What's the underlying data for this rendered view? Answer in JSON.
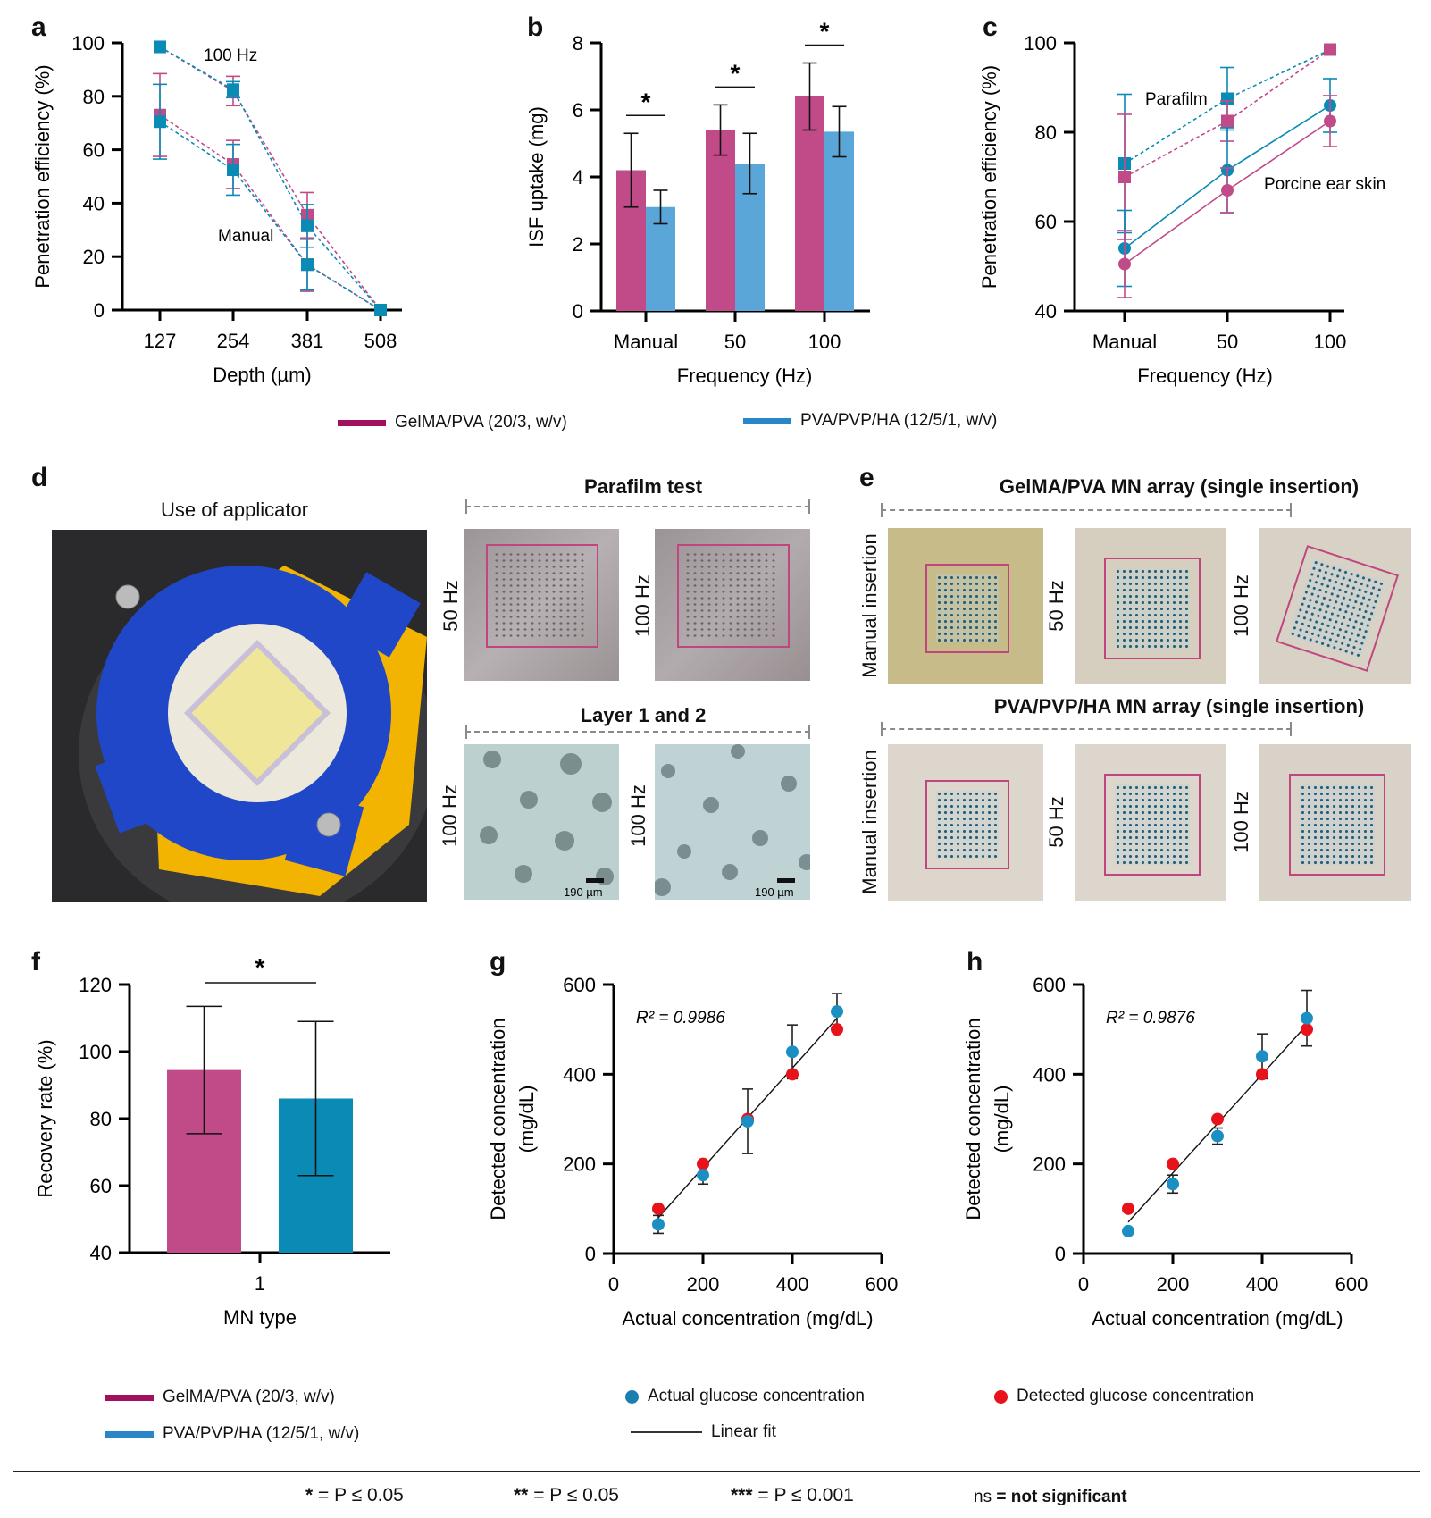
{
  "colors": {
    "gelma": "#c14b89",
    "pva": "#0a8bb5",
    "pva_light": "#5aa6d8",
    "legend_gelma": "#a20f5c",
    "legend_pva": "#2a87c7",
    "actual_dot": "#1c8fc2",
    "detected_dot": "#e8121a",
    "frame": "#c1467f"
  },
  "panels": {
    "a": "a",
    "b": "b",
    "c": "c",
    "d": "d",
    "e": "e",
    "f": "f",
    "g": "g",
    "h": "h"
  },
  "legend_top": {
    "gelma": "GelMA/PVA (20/3, w/v)",
    "pva": "PVA/PVP/HA (12/5/1, w/v)"
  },
  "legend_bottom": {
    "gelma": "GelMA/PVA (20/3, w/v)",
    "pva": "PVA/PVP/HA (12/5/1, w/v)",
    "actual": "Actual glucose concentration",
    "detected": "Detected glucose concentration",
    "fit": "Linear fit"
  },
  "panel_d": {
    "applicator_title": "Use of applicator",
    "parafilm_title": "Parafilm test",
    "parafilm_labels": [
      "50 Hz",
      "100 Hz"
    ],
    "layer_title": "Layer 1 and 2",
    "layer_labels": [
      "100 Hz",
      "100 Hz"
    ],
    "scale_bar": "190 µm"
  },
  "panel_e": {
    "row1_title": "GelMA/PVA MN array (single insertion)",
    "row2_title": "PVA/PVP/HA MN array (single insertion)",
    "labels": [
      "Manual insertion",
      "50 Hz",
      "100 Hz"
    ]
  },
  "footnotes": {
    "p1_sym": "*",
    "p1_txt": " = P ≤ 0.05",
    "p2_sym": "**",
    "p2_txt": " = P ≤ 0.05",
    "p3_sym": "***",
    "p3_txt": " = P ≤ 0.001",
    "ns_sym": "ns",
    "ns_txt": " = not significant"
  },
  "chart_data": [
    {
      "id": "a",
      "type": "line",
      "title": "",
      "xlabel": "Depth (µm)",
      "ylabel": "Penetration efficiency (%)",
      "x": [
        127,
        254,
        381,
        508
      ],
      "xticks": [
        "127",
        "254",
        "381",
        "508"
      ],
      "ylim": [
        0,
        100
      ],
      "yticks": [
        0,
        20,
        40,
        60,
        80,
        100
      ],
      "annotations": [
        "100 Hz",
        "Manual"
      ],
      "series": [
        {
          "name": "GelMA/PVA 100 Hz",
          "color": "gelma",
          "values": [
            98.5,
            82,
            35.5,
            0
          ],
          "err": [
            0,
            5.5,
            8.5,
            0
          ]
        },
        {
          "name": "PVA/PVP/HA 100 Hz",
          "color": "pva",
          "values": [
            98.5,
            82.5,
            31.5,
            0
          ],
          "err": [
            0,
            3,
            8,
            0
          ]
        },
        {
          "name": "GelMA/PVA Manual",
          "color": "gelma",
          "values": [
            73,
            54.5,
            17,
            0
          ],
          "err": [
            15.5,
            9,
            10,
            0
          ]
        },
        {
          "name": "PVA/PVP/HA Manual",
          "color": "pva",
          "values": [
            70.5,
            52.5,
            17,
            0
          ],
          "err": [
            14,
            9.5,
            9.5,
            0
          ]
        }
      ]
    },
    {
      "id": "b",
      "type": "bar",
      "title": "",
      "xlabel": "Frequency (Hz)",
      "ylabel": "ISF uptake (mg)",
      "categories": [
        "Manual",
        "50",
        "100"
      ],
      "ylim": [
        0,
        8
      ],
      "yticks": [
        0,
        2,
        4,
        6,
        8
      ],
      "series": [
        {
          "name": "GelMA/PVA (20/3, w/v)",
          "values": [
            4.2,
            5.4,
            6.4
          ],
          "err": [
            1.1,
            0.75,
            1.0
          ]
        },
        {
          "name": "PVA/PVP/HA (12/5/1, w/v)",
          "values": [
            3.1,
            4.4,
            5.35
          ],
          "err": [
            0.5,
            0.9,
            0.75
          ]
        }
      ],
      "significance": [
        "*",
        "*",
        "*"
      ]
    },
    {
      "id": "c",
      "type": "line",
      "title": "",
      "xlabel": "Frequency (Hz)",
      "ylabel": "Penetration efficiency (%)",
      "categories": [
        "Manual",
        "50",
        "100"
      ],
      "ylim": [
        40,
        100
      ],
      "yticks": [
        40,
        60,
        80,
        100
      ],
      "annotations": [
        "Parafilm",
        "Porcine ear skin"
      ],
      "series": [
        {
          "name": "PVA/PVP/HA Parafilm",
          "color": "pva",
          "marker": "square",
          "dashed": true,
          "values": [
            73,
            87.5,
            98.5
          ],
          "err": [
            15.5,
            7,
            0
          ]
        },
        {
          "name": "GelMA/PVA Parafilm",
          "color": "gelma",
          "marker": "square",
          "dashed": true,
          "values": [
            70,
            82.5,
            98.5
          ],
          "err": [
            14,
            4.5,
            0
          ]
        },
        {
          "name": "PVA/PVP/HA Porcine ear skin",
          "color": "pva",
          "marker": "circle",
          "dashed": false,
          "values": [
            54,
            71.5,
            86
          ],
          "err": [
            8.5,
            9.5,
            6
          ]
        },
        {
          "name": "GelMA/PVA Porcine ear skin",
          "color": "gelma",
          "marker": "circle",
          "dashed": false,
          "values": [
            50.5,
            67,
            82.5
          ],
          "err": [
            7.5,
            5,
            5.7
          ]
        }
      ]
    },
    {
      "id": "f",
      "type": "bar",
      "title": "",
      "xlabel": "MN type",
      "ylabel": "Recovery rate (%)",
      "categories": [
        "1"
      ],
      "ylim": [
        40,
        120
      ],
      "yticks": [
        40,
        60,
        80,
        100,
        120
      ],
      "series": [
        {
          "name": "GelMA/PVA (20/3, w/v)",
          "values": [
            94.5
          ],
          "err": [
            19
          ]
        },
        {
          "name": "PVA/PVP/HA (12/5/1, w/v)",
          "values": [
            86
          ],
          "err": [
            23
          ]
        }
      ],
      "significance": [
        "*"
      ]
    },
    {
      "id": "g",
      "type": "scatter",
      "title": "",
      "xlabel": "Actual concentration (mg/dL)",
      "ylabel": "Detected concentration (mg/dL)",
      "xlim": [
        0,
        600
      ],
      "ylim": [
        0,
        600
      ],
      "xticks": [
        0,
        200,
        400,
        600
      ],
      "yticks": [
        0,
        200,
        400,
        600
      ],
      "r2": "R² = 0.9986",
      "series": [
        {
          "name": "Actual glucose concentration",
          "x": [
            100,
            200,
            300,
            400,
            500
          ],
          "y": [
            65,
            175,
            295,
            450,
            540
          ],
          "err": [
            20,
            20,
            72,
            60,
            40
          ]
        },
        {
          "name": "Detected glucose concentration",
          "x": [
            100,
            200,
            300,
            400,
            500
          ],
          "y": [
            100,
            200,
            300,
            400,
            500
          ]
        }
      ],
      "fit": {
        "x0": 100,
        "y0": 80,
        "x1": 500,
        "y1": 525
      }
    },
    {
      "id": "h",
      "type": "scatter",
      "title": "",
      "xlabel": "Actual concentration (mg/dL)",
      "ylabel": "Detected concentration (mg/dL)",
      "xlim": [
        0,
        600
      ],
      "ylim": [
        0,
        600
      ],
      "xticks": [
        0,
        200,
        400,
        600
      ],
      "yticks": [
        0,
        200,
        400,
        600
      ],
      "r2": "R² = 0.9876",
      "series": [
        {
          "name": "Actual glucose concentration",
          "x": [
            100,
            200,
            300,
            400,
            500
          ],
          "y": [
            50,
            155,
            262,
            440,
            525
          ],
          "err": [
            0,
            20,
            18,
            50,
            62
          ]
        },
        {
          "name": "Detected glucose concentration",
          "x": [
            100,
            200,
            300,
            400,
            500
          ],
          "y": [
            100,
            200,
            300,
            400,
            500
          ]
        }
      ],
      "fit": {
        "x0": 100,
        "y0": 70,
        "x1": 500,
        "y1": 510
      }
    }
  ]
}
